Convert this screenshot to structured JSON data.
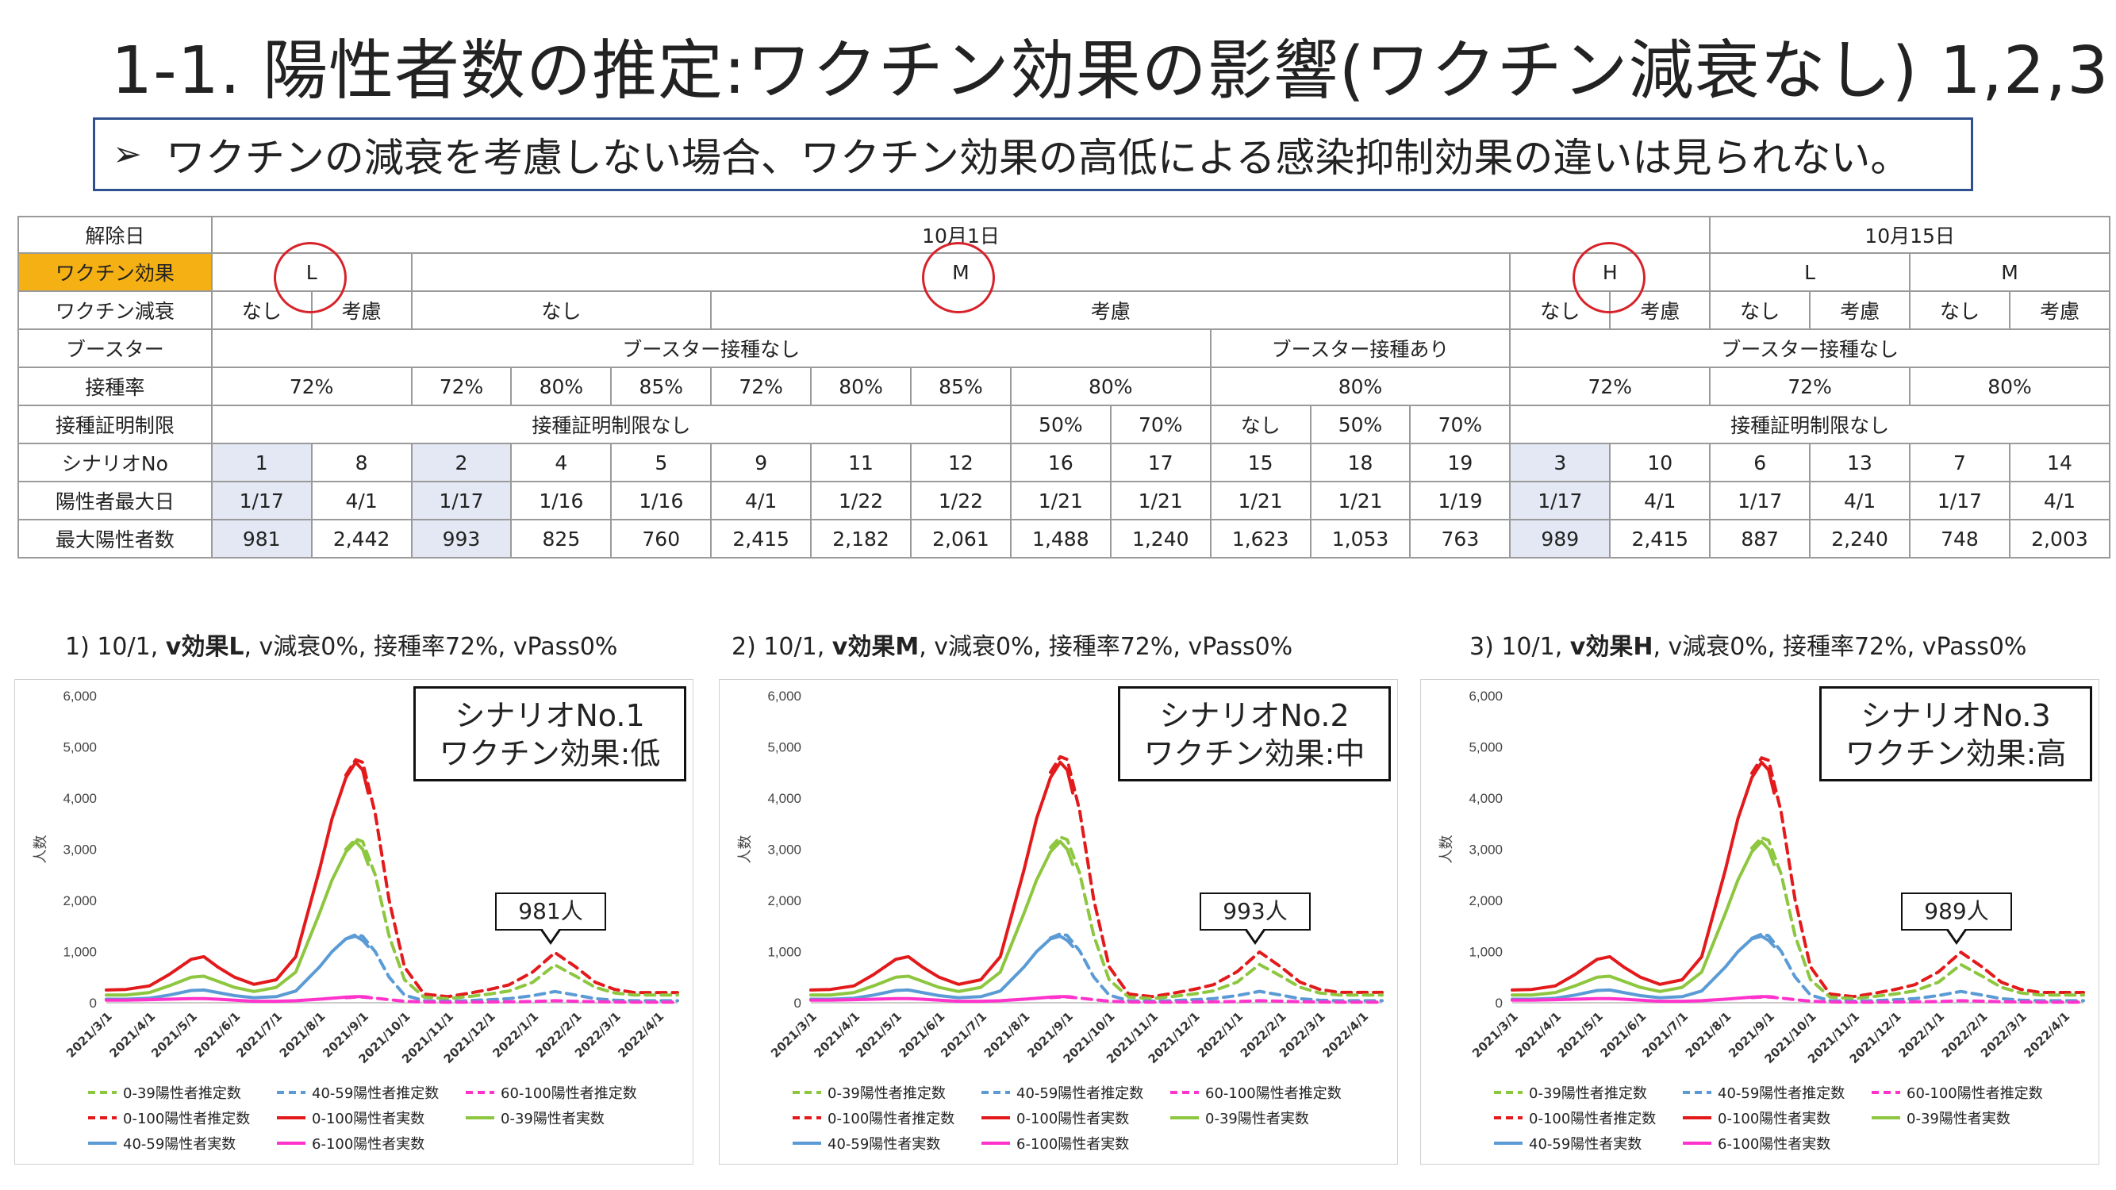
{
  "title": "1-1. 陽性者数の推定:ワクチン効果の影響(ワクチン減衰なし) 1,2,3",
  "subtitle": "ワクチンの減衰を考慮しない場合、ワクチン効果の高低による感染抑制効果の違いは見られない。",
  "subtitle_bullet": "➢",
  "table": {
    "row_labels": {
      "date": "解除日",
      "vaccine_effect": "ワクチン効果",
      "vaccine_decay": "ワクチン減衰",
      "booster": "ブースター",
      "vax_rate": "接種率",
      "vpass": "接種証明制限",
      "scenario_no": "シナリオNo",
      "peak_day": "陽性者最大日",
      "max_positive": "最大陽性者数"
    },
    "date_row": [
      "10月1日",
      "10月15日"
    ],
    "effect_row": [
      "L",
      "M",
      "H",
      "L",
      "M"
    ],
    "decay_row": [
      "なし",
      "考慮",
      "なし",
      "考慮",
      "なし",
      "考慮",
      "なし",
      "考慮",
      "なし",
      "考慮"
    ],
    "booster_row": [
      "ブースター接種なし",
      "ブースター接種あり",
      "ブースター接種なし"
    ],
    "rate_row": [
      "72%",
      "72%",
      "80%",
      "85%",
      "72%",
      "80%",
      "85%",
      "80%",
      "80%",
      "72%",
      "72%",
      "80%"
    ],
    "vpass_row": [
      "接種証明制限なし",
      "50%",
      "70%",
      "なし",
      "50%",
      "70%",
      "接種証明制限なし"
    ],
    "scenario_row": [
      "1",
      "8",
      "2",
      "4",
      "5",
      "9",
      "11",
      "12",
      "16",
      "17",
      "15",
      "18",
      "19",
      "3",
      "10",
      "6",
      "13",
      "7",
      "14"
    ],
    "peak_row": [
      "1/17",
      "4/1",
      "1/17",
      "1/16",
      "1/16",
      "4/1",
      "1/22",
      "1/22",
      "1/21",
      "1/21",
      "1/21",
      "1/21",
      "1/19",
      "1/17",
      "4/1",
      "1/17",
      "4/1",
      "1/17",
      "4/1"
    ],
    "max_row": [
      "981",
      "2,442",
      "993",
      "825",
      "760",
      "2,415",
      "2,182",
      "2,061",
      "1,488",
      "1,240",
      "1,623",
      "1,053",
      "763",
      "989",
      "2,415",
      "887",
      "2,240",
      "748",
      "2,003"
    ]
  },
  "panels": [
    {
      "caption_pre": "1) 10/1, ",
      "caption_bold": "v効果L",
      "caption_post": ", v減衰0%, 接種率72%, vPass0%",
      "box_line1": "シナリオNo.1",
      "box_line2": "ワクチン効果:低",
      "callout": "981人"
    },
    {
      "caption_pre": "2) 10/1, ",
      "caption_bold": "v効果M",
      "caption_post": ", v減衰0%, 接種率72%, vPass0%",
      "box_line1": "シナリオNo.2",
      "box_line2": "ワクチン効果:中",
      "callout": "993人"
    },
    {
      "caption_pre": "3) 10/1, ",
      "caption_bold": "v効果H",
      "caption_post": ", v減衰0%, 接種率72%, vPass0%",
      "box_line1": "シナリオNo.3",
      "box_line2": "ワクチン効果:高",
      "callout": "989人"
    }
  ],
  "chart_data": {
    "type": "line",
    "ylabel": "人数",
    "ylim": [
      0,
      6000
    ],
    "yticks": [
      0,
      1000,
      2000,
      3000,
      4000,
      5000,
      6000
    ],
    "ytick_labels": [
      "0",
      "1,000",
      "2,000",
      "3,000",
      "4,000",
      "5,000",
      "6,000"
    ],
    "xlim": [
      "2021/3/1",
      "2022/4/15"
    ],
    "x_tick_labels": [
      "2021/3/1",
      "2021/4/1",
      "2021/5/1",
      "2021/6/1",
      "2021/7/1",
      "2021/8/1",
      "2021/9/1",
      "2021/10/1",
      "2021/11/1",
      "2021/12/1",
      "2022/1/1",
      "2022/2/1",
      "2022/3/1",
      "2022/4/1"
    ],
    "grid": false,
    "legend_position": "bottom",
    "legend": [
      "0-39陽性者推定数",
      "40-59陽性者推定数",
      "60-100陽性者推定数",
      "0-100陽性者推定数",
      "0-100陽性者実数",
      "0-39陽性者実数",
      "40-59陽性者実数",
      "6-100陽性者実数"
    ],
    "colors": {
      "total": "#e31a1c",
      "age0_39": "#8dc63f",
      "age40_59": "#5b9bd5",
      "age60_100": "#ff33cc"
    },
    "estimate_dates": [
      "2021/10/1",
      "2021/10/15",
      "2021/11/1",
      "2021/11/15",
      "2021/12/1",
      "2021/12/15",
      "2022/1/1",
      "2022/1/17",
      "2022/2/1",
      "2022/2/15",
      "2022/3/1",
      "2022/3/15",
      "2022/4/1",
      "2022/4/15"
    ],
    "series": [
      {
        "name": "0-100陽性者実数",
        "kind": "actual",
        "color": "#e31a1c",
        "x": [
          "2021/3/1",
          "2021/3/15",
          "2021/4/1",
          "2021/4/15",
          "2021/5/1",
          "2021/5/10",
          "2021/5/20",
          "2021/6/1",
          "2021/6/15",
          "2021/7/1",
          "2021/7/15",
          "2021/8/1",
          "2021/8/10",
          "2021/8/20",
          "2021/8/27",
          "2021/9/1",
          "2021/9/5"
        ],
        "y": [
          250,
          260,
          330,
          550,
          850,
          900,
          700,
          500,
          360,
          450,
          900,
          2600,
          3600,
          4400,
          4700,
          4550,
          4100
        ]
      },
      {
        "name": "0-39陽性者実数",
        "kind": "actual",
        "color": "#8dc63f",
        "x": [
          "2021/3/1",
          "2021/3/15",
          "2021/4/1",
          "2021/4/15",
          "2021/5/1",
          "2021/5/10",
          "2021/5/20",
          "2021/6/1",
          "2021/6/15",
          "2021/7/1",
          "2021/7/15",
          "2021/8/1",
          "2021/8/10",
          "2021/8/20",
          "2021/8/27",
          "2021/9/1",
          "2021/9/5"
        ],
        "y": [
          150,
          150,
          200,
          330,
          500,
          520,
          420,
          300,
          220,
          300,
          600,
          1750,
          2400,
          2950,
          3150,
          3000,
          2700
        ]
      },
      {
        "name": "40-59陽性者実数",
        "kind": "actual",
        "color": "#5b9bd5",
        "x": [
          "2021/3/1",
          "2021/3/15",
          "2021/4/1",
          "2021/4/15",
          "2021/5/1",
          "2021/5/10",
          "2021/5/20",
          "2021/6/1",
          "2021/6/15",
          "2021/7/1",
          "2021/7/15",
          "2021/8/1",
          "2021/8/10",
          "2021/8/20",
          "2021/8/27",
          "2021/9/1",
          "2021/9/5"
        ],
        "y": [
          70,
          70,
          90,
          150,
          240,
          250,
          200,
          140,
          100,
          120,
          230,
          700,
          1000,
          1250,
          1300,
          1220,
          1100
        ]
      },
      {
        "name": "6-100陽性者実数",
        "kind": "actual",
        "color": "#ff33cc",
        "x": [
          "2021/3/1",
          "2021/3/15",
          "2021/4/1",
          "2021/4/15",
          "2021/5/1",
          "2021/5/10",
          "2021/5/20",
          "2021/6/1",
          "2021/6/15",
          "2021/7/1",
          "2021/7/15",
          "2021/8/1",
          "2021/8/10",
          "2021/8/20",
          "2021/8/27",
          "2021/9/1",
          "2021/9/5"
        ],
        "y": [
          50,
          50,
          60,
          70,
          80,
          80,
          70,
          50,
          30,
          30,
          40,
          70,
          90,
          110,
          120,
          120,
          110
        ]
      },
      {
        "name": "0-100陽性者推定数",
        "kind": "estimate",
        "color": "#e31a1c",
        "x": [
          "2021/8/20",
          "2021/8/27",
          "2021/9/1",
          "2021/9/10",
          "2021/9/20",
          "2021/10/1",
          "2021/10/15",
          "2021/11/1",
          "2021/11/15",
          "2021/12/1",
          "2021/12/15",
          "2022/1/1",
          "2022/1/17",
          "2022/2/1",
          "2022/2/15",
          "2022/3/1",
          "2022/3/15",
          "2022/4/1",
          "2022/4/15"
        ],
        "y": [
          4450,
          4750,
          4700,
          3700,
          2000,
          700,
          170,
          120,
          180,
          260,
          350,
          600,
          980,
          700,
          400,
          260,
          200,
          200,
          200
        ]
      },
      {
        "name": "0-39陽性者推定数",
        "kind": "estimate",
        "color": "#8dc63f",
        "x": [
          "2021/8/20",
          "2021/8/27",
          "2021/9/1",
          "2021/9/10",
          "2021/9/20",
          "2021/10/1",
          "2021/10/15",
          "2021/11/1",
          "2021/11/15",
          "2021/12/1",
          "2021/12/15",
          "2022/1/1",
          "2022/1/17",
          "2022/2/1",
          "2022/2/15",
          "2022/3/1",
          "2022/3/15",
          "2022/4/1",
          "2022/4/15"
        ],
        "y": [
          3000,
          3200,
          3150,
          2500,
          1300,
          450,
          110,
          80,
          120,
          170,
          230,
          400,
          740,
          520,
          300,
          190,
          150,
          150,
          150
        ]
      },
      {
        "name": "40-59陽性者推定数",
        "kind": "estimate",
        "color": "#5b9bd5",
        "x": [
          "2021/8/20",
          "2021/8/27",
          "2021/9/1",
          "2021/9/10",
          "2021/9/20",
          "2021/10/1",
          "2021/10/15",
          "2021/11/1",
          "2021/11/15",
          "2021/12/1",
          "2021/12/15",
          "2022/1/1",
          "2022/1/17",
          "2022/2/1",
          "2022/2/15",
          "2022/3/1",
          "2022/3/15",
          "2022/4/1",
          "2022/4/15"
        ],
        "y": [
          1250,
          1330,
          1300,
          1000,
          500,
          150,
          40,
          30,
          40,
          60,
          80,
          140,
          220,
          150,
          80,
          50,
          40,
          40,
          40
        ]
      },
      {
        "name": "60-100陽性者推定数",
        "kind": "estimate",
        "color": "#ff33cc",
        "x": [
          "2021/8/20",
          "2021/8/27",
          "2021/9/1",
          "2021/9/10",
          "2021/9/20",
          "2021/10/1",
          "2021/10/15",
          "2021/11/1",
          "2021/11/15",
          "2021/12/1",
          "2021/12/15",
          "2022/1/1",
          "2022/1/17",
          "2022/2/1",
          "2022/2/15",
          "2022/3/1",
          "2022/3/15",
          "2022/4/1",
          "2022/4/15"
        ],
        "y": [
          100,
          110,
          110,
          90,
          60,
          30,
          15,
          10,
          12,
          15,
          18,
          25,
          40,
          30,
          20,
          15,
          12,
          12,
          12
        ]
      }
    ]
  }
}
